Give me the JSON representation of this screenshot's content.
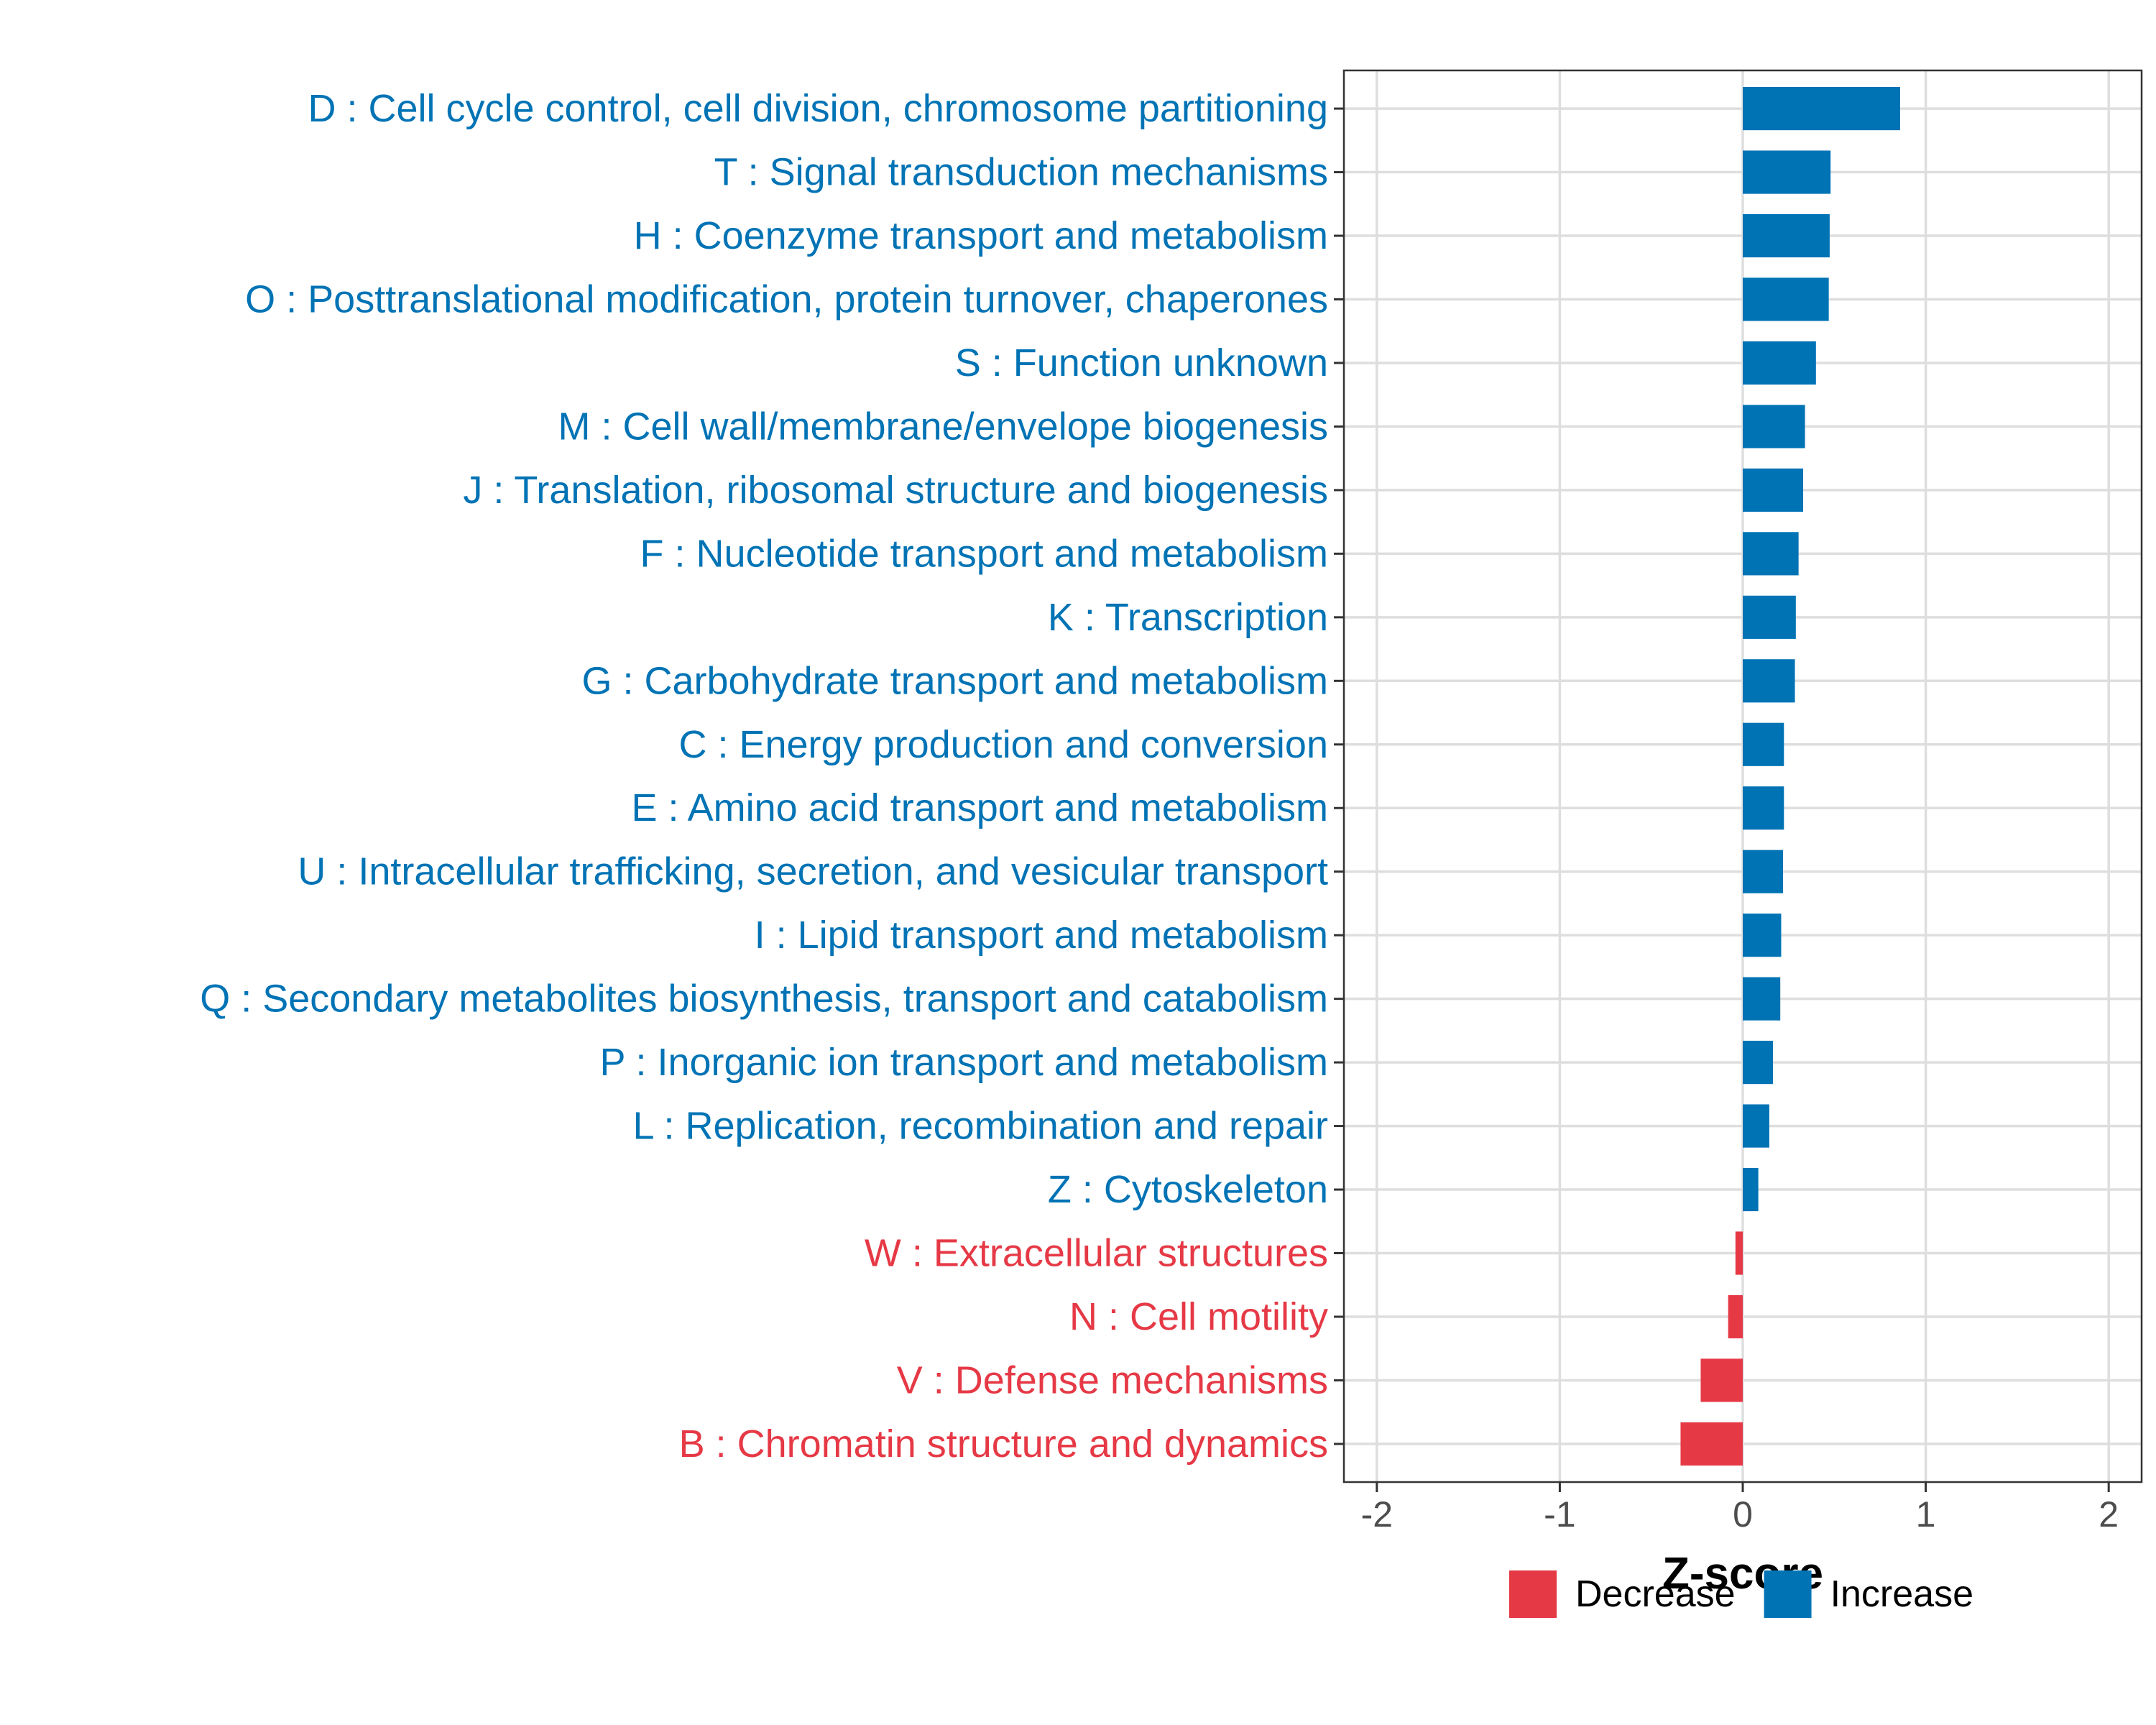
{
  "chart_data": {
    "type": "bar",
    "orientation": "horizontal",
    "xlabel": "Z-score",
    "xlim": [
      -2,
      2
    ],
    "xticks": [
      -2,
      -1,
      0,
      1,
      2
    ],
    "xtick_labels": [
      "-2",
      "-1",
      "0",
      "1",
      "2"
    ],
    "categories": [
      "D : Cell cycle control, cell division, chromosome partitioning",
      "T : Signal transduction mechanisms",
      "H : Coenzyme transport and metabolism",
      "O : Posttranslational modification, protein turnover, chaperones",
      "S : Function unknown",
      "M : Cell wall/membrane/envelope biogenesis",
      "J : Translation, ribosomal structure and biogenesis",
      "F : Nucleotide transport and metabolism",
      "K : Transcription",
      "G : Carbohydrate transport and metabolism",
      "C : Energy production and conversion",
      "E : Amino acid transport and metabolism",
      "U : Intracellular trafficking, secretion, and vesicular transport",
      "I : Lipid transport and metabolism",
      "Q : Secondary metabolites biosynthesis, transport and catabolism",
      "P : Inorganic ion transport and metabolism",
      "L : Replication, recombination and repair",
      "Z : Cytoskeleton",
      "W : Extracellular structures",
      "N : Cell motility",
      "V : Defense mechanisms",
      "B : Chromatin structure and dynamics"
    ],
    "values": [
      0.86,
      0.48,
      0.475,
      0.47,
      0.4,
      0.34,
      0.33,
      0.305,
      0.29,
      0.285,
      0.225,
      0.225,
      0.22,
      0.21,
      0.205,
      0.165,
      0.145,
      0.085,
      -0.04,
      -0.08,
      -0.23,
      -0.34
    ],
    "groups": [
      "Increase",
      "Increase",
      "Increase",
      "Increase",
      "Increase",
      "Increase",
      "Increase",
      "Increase",
      "Increase",
      "Increase",
      "Increase",
      "Increase",
      "Increase",
      "Increase",
      "Increase",
      "Increase",
      "Increase",
      "Increase",
      "Decrease",
      "Decrease",
      "Decrease",
      "Decrease"
    ],
    "legend": {
      "position": "bottom",
      "entries": [
        {
          "name": "Decrease",
          "color": "#E63946"
        },
        {
          "name": "Increase",
          "color": "#0073B5"
        }
      ]
    },
    "grid": true
  }
}
